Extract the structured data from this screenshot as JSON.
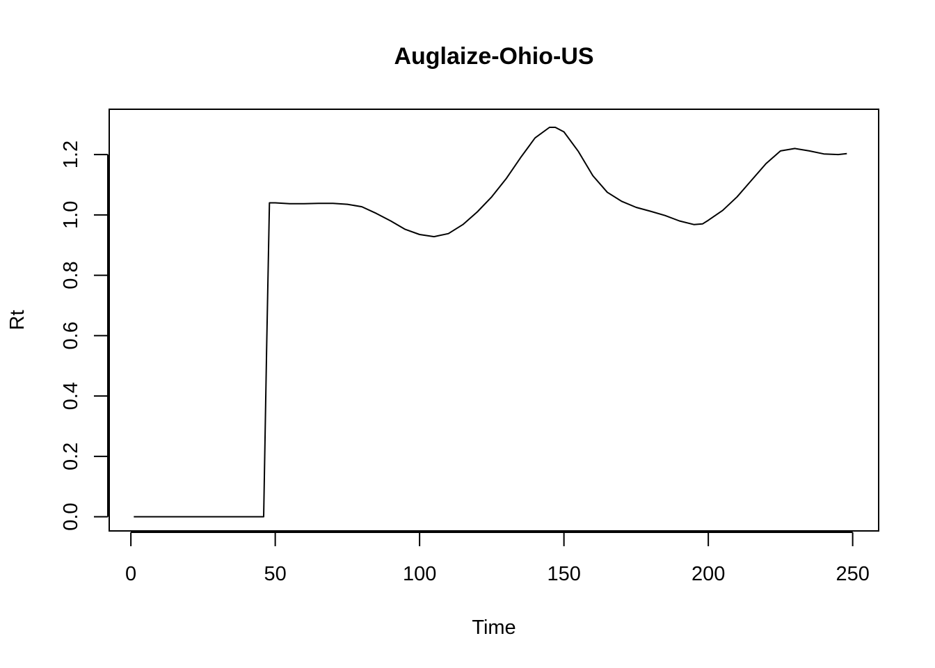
{
  "chart_data": {
    "type": "line",
    "title": "Auglaize-Ohio-US",
    "xlabel": "Time",
    "ylabel": "Rt",
    "xlim": [
      -7.5,
      259
    ],
    "ylim": [
      -0.047,
      1.35
    ],
    "x_ticks": [
      0,
      50,
      100,
      150,
      200,
      250
    ],
    "x_tick_labels": [
      "0",
      "50",
      "100",
      "150",
      "200",
      "250"
    ],
    "y_ticks": [
      0.0,
      0.2,
      0.4,
      0.6,
      0.8,
      1.0,
      1.2
    ],
    "y_tick_labels": [
      "0.0",
      "0.2",
      "0.4",
      "0.6",
      "0.8",
      "1.0",
      "1.2"
    ],
    "grid": false,
    "line_color": "#000000",
    "series": [
      {
        "x": [
          1,
          10,
          20,
          30,
          40,
          46,
          47,
          48,
          50,
          55,
          60,
          65,
          70,
          75,
          80,
          85,
          90,
          95,
          100,
          105,
          110,
          115,
          120,
          125,
          130,
          135,
          140,
          145,
          147,
          150,
          155,
          160,
          165,
          170,
          175,
          180,
          185,
          190,
          195,
          198,
          200,
          205,
          210,
          215,
          220,
          225,
          230,
          235,
          240,
          245,
          248
        ],
        "y": [
          0.0,
          0.0,
          0.0,
          0.0,
          0.0,
          0.0,
          0.55,
          1.04,
          1.04,
          1.037,
          1.037,
          1.038,
          1.038,
          1.035,
          1.027,
          1.005,
          0.98,
          0.952,
          0.935,
          0.928,
          0.938,
          0.968,
          1.01,
          1.06,
          1.12,
          1.19,
          1.255,
          1.29,
          1.29,
          1.275,
          1.21,
          1.13,
          1.075,
          1.045,
          1.025,
          1.012,
          0.998,
          0.98,
          0.968,
          0.97,
          0.982,
          1.015,
          1.06,
          1.115,
          1.17,
          1.212,
          1.22,
          1.212,
          1.202,
          1.2,
          1.203
        ]
      }
    ]
  }
}
